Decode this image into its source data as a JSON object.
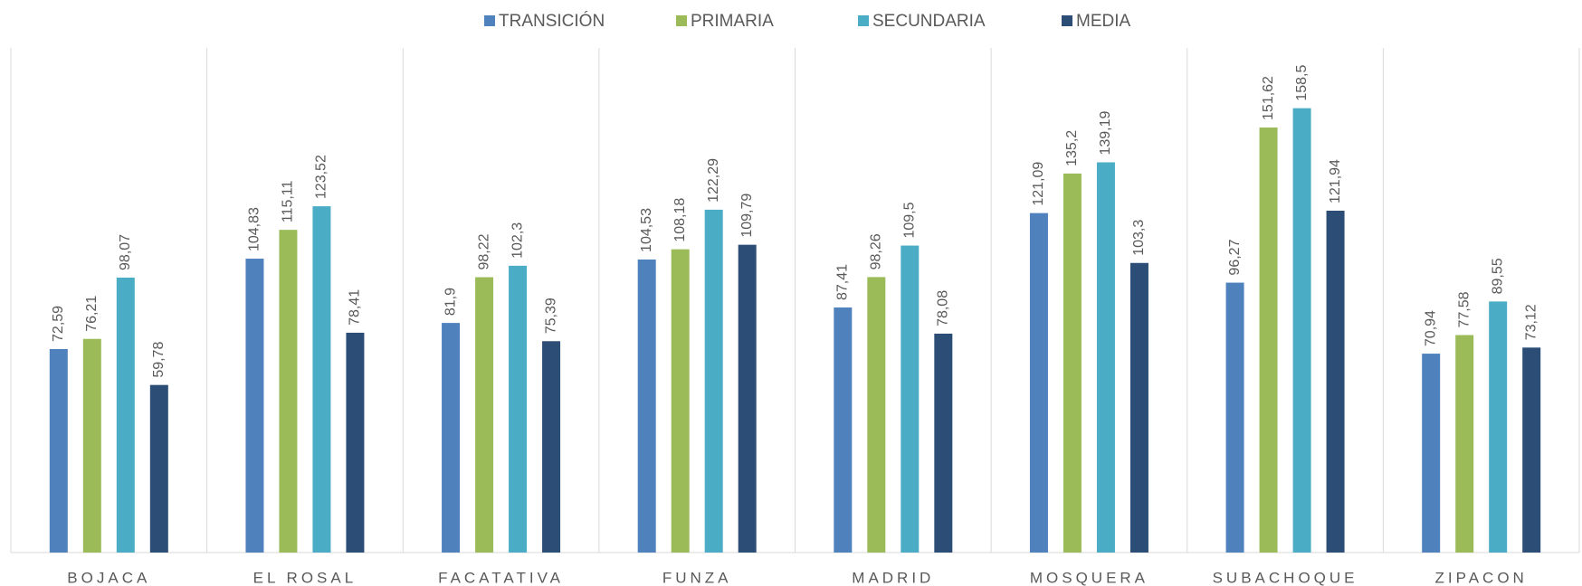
{
  "chart_data": {
    "type": "bar",
    "categories": [
      "BOJACA",
      "EL ROSAL",
      "FACATATIVA",
      "FUNZA",
      "MADRID",
      "MOSQUERA",
      "SUBACHOQUE",
      "ZIPACON"
    ],
    "series": [
      {
        "name": "TRANSICIÓN",
        "color": "#4f81bd",
        "values": [
          72.59,
          104.83,
          81.9,
          104.53,
          87.41,
          121.09,
          96.27,
          70.94
        ],
        "value_labels": [
          "72,59",
          "104,83",
          "81,9",
          "104,53",
          "87,41",
          "121,09",
          "96,27",
          "70,94"
        ]
      },
      {
        "name": "PRIMARIA",
        "color": "#9bbb59",
        "values": [
          76.21,
          115.11,
          98.22,
          108.18,
          98.26,
          135.2,
          151.62,
          77.58
        ],
        "value_labels": [
          "76,21",
          "115,11",
          "98,22",
          "108,18",
          "98,26",
          "135,2",
          "151,62",
          "77,58"
        ]
      },
      {
        "name": "SECUNDARIA",
        "color": "#4bacc6",
        "values": [
          98.07,
          123.52,
          102.3,
          122.29,
          109.5,
          139.19,
          158.5,
          89.55
        ],
        "value_labels": [
          "98,07",
          "123,52",
          "102,3",
          "122,29",
          "109,5",
          "139,19",
          "158,5",
          "89,55"
        ]
      },
      {
        "name": "MEDIA",
        "color": "#2c4d75",
        "values": [
          59.78,
          78.41,
          75.39,
          109.79,
          78.08,
          103.3,
          121.94,
          73.12
        ],
        "value_labels": [
          "59,78",
          "78,41",
          "75,39",
          "109,79",
          "78,08",
          "103,3",
          "121,94",
          "73,12"
        ]
      }
    ],
    "ylim": [
      0,
      180
    ],
    "legend": "top"
  }
}
